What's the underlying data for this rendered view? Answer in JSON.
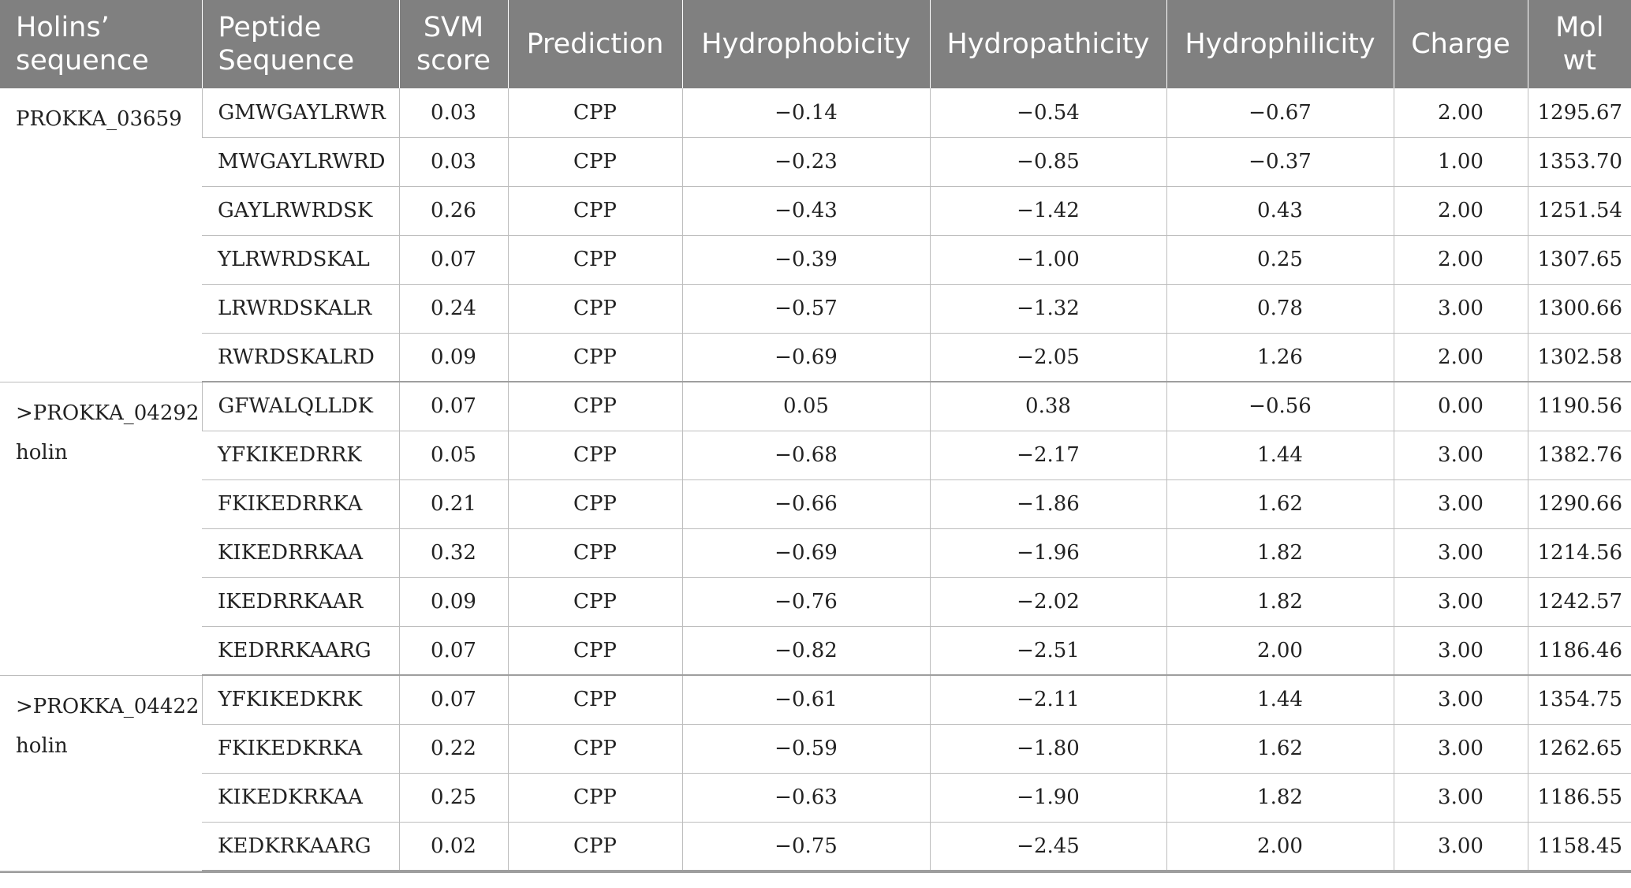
{
  "header": {
    "col1": "Holins’ sequence",
    "col2": "Peptide Sequence",
    "col3": "SVM score",
    "col4": "Prediction",
    "col5": "Hydrophobicity",
    "col6": "Hydropathicity",
    "col7": "Hydrophilicity",
    "col8": "Charge",
    "col9": "Mol wt"
  },
  "groups": [
    {
      "name": "PROKKA_03659",
      "rows": [
        [
          "GMWGAYLRWR",
          "0.03",
          "CPP",
          "−0.14",
          "−0.54",
          "−0.67",
          "2.00",
          "1295.67"
        ],
        [
          "MWGAYLRWRD",
          "0.03",
          "CPP",
          "−0.23",
          "−0.85",
          "−0.37",
          "1.00",
          "1353.70"
        ],
        [
          "GAYLRWRDSK",
          "0.26",
          "CPP",
          "−0.43",
          "−1.42",
          "0.43",
          "2.00",
          "1251.54"
        ],
        [
          "YLRWRDSKAL",
          "0.07",
          "CPP",
          "−0.39",
          "−1.00",
          "0.25",
          "2.00",
          "1307.65"
        ],
        [
          "LRWRDSKALR",
          "0.24",
          "CPP",
          "−0.57",
          "−1.32",
          "0.78",
          "3.00",
          "1300.66"
        ],
        [
          "RWRDSKALRD",
          "0.09",
          "CPP",
          "−0.69",
          "−2.05",
          "1.26",
          "2.00",
          "1302.58"
        ]
      ]
    },
    {
      "name": ">PROKKA_04292 holin",
      "rows": [
        [
          "GFWALQLLDK",
          "0.07",
          "CPP",
          "0.05",
          "0.38",
          "−0.56",
          "0.00",
          "1190.56"
        ],
        [
          "YFKIKEDRRK",
          "0.05",
          "CPP",
          "−0.68",
          "−2.17",
          "1.44",
          "3.00",
          "1382.76"
        ],
        [
          "FKIKEDRRKA",
          "0.21",
          "CPP",
          "−0.66",
          "−1.86",
          "1.62",
          "3.00",
          "1290.66"
        ],
        [
          "KIKEDRRKAA",
          "0.32",
          "CPP",
          "−0.69",
          "−1.96",
          "1.82",
          "3.00",
          "1214.56"
        ],
        [
          "IKEDRRKAAR",
          "0.09",
          "CPP",
          "−0.76",
          "−2.02",
          "1.82",
          "3.00",
          "1242.57"
        ],
        [
          "KEDRRKAARG",
          "0.07",
          "CPP",
          "−0.82",
          "−2.51",
          "2.00",
          "3.00",
          "1186.46"
        ]
      ]
    },
    {
      "name": ">PROKKA_04422 holin",
      "rows": [
        [
          "YFKIKEDKRK",
          "0.07",
          "CPP",
          "−0.61",
          "−2.11",
          "1.44",
          "3.00",
          "1354.75"
        ],
        [
          "FKIKEDKRKA",
          "0.22",
          "CPP",
          "−0.59",
          "−1.80",
          "1.62",
          "3.00",
          "1262.65"
        ],
        [
          "KIKEDKRKAA",
          "0.25",
          "CPP",
          "−0.63",
          "−1.90",
          "1.82",
          "3.00",
          "1186.55"
        ],
        [
          "KEDKRKAARG",
          "0.02",
          "CPP",
          "−0.75",
          "−2.45",
          "2.00",
          "3.00",
          "1158.45"
        ]
      ]
    }
  ]
}
